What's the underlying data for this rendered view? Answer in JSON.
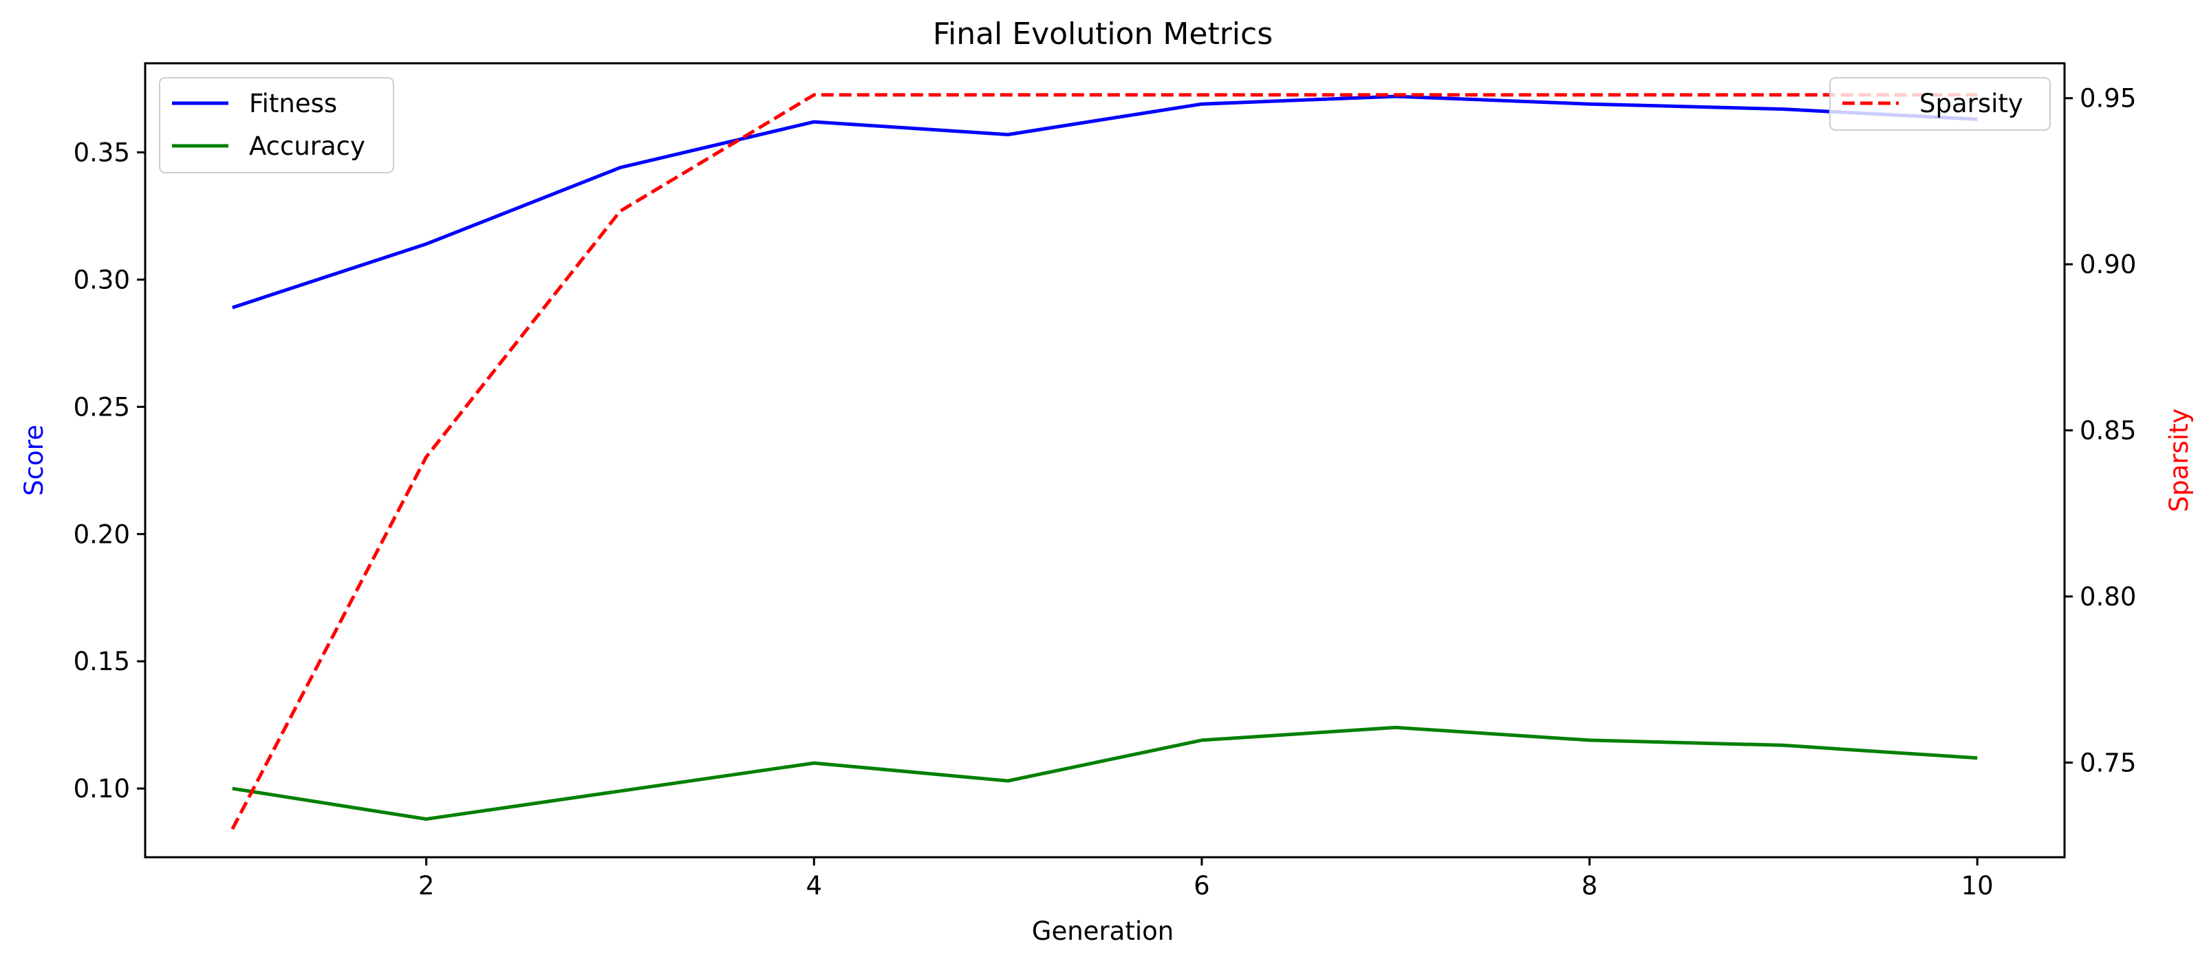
{
  "chart_data": {
    "type": "line",
    "title": "Final Evolution Metrics",
    "xlabel": "Generation",
    "ylabel": "Score",
    "y2label": "Sparsity",
    "x": [
      1,
      2,
      3,
      4,
      5,
      6,
      7,
      8,
      9,
      10
    ],
    "xlim": [
      0.55,
      10.45
    ],
    "ylim": [
      0.073,
      0.385
    ],
    "y2lim": [
      0.7215,
      0.9605
    ],
    "xticks": [
      2,
      4,
      6,
      8,
      10
    ],
    "yticks": [
      0.1,
      0.15,
      0.2,
      0.25,
      0.3,
      0.35
    ],
    "y2ticks": [
      0.75,
      0.8,
      0.85,
      0.9,
      0.95
    ],
    "colors": {
      "ylabel": "#0000ff",
      "y2label": "#ff0000"
    },
    "series": [
      {
        "name": "Fitness",
        "axis": "left",
        "color": "#0000ff",
        "style": "solid",
        "values": [
          0.289,
          0.314,
          0.344,
          0.362,
          0.357,
          0.369,
          0.372,
          0.369,
          0.367,
          0.363
        ]
      },
      {
        "name": "Accuracy",
        "axis": "left",
        "color": "#008000",
        "style": "solid",
        "values": [
          0.1,
          0.088,
          0.099,
          0.11,
          0.103,
          0.119,
          0.124,
          0.119,
          0.117,
          0.112
        ]
      },
      {
        "name": "Sparsity",
        "axis": "right",
        "color": "#ff0000",
        "style": "dashed",
        "values": [
          0.73,
          0.842,
          0.916,
          0.951,
          0.951,
          0.951,
          0.951,
          0.951,
          0.951,
          0.951
        ]
      }
    ],
    "legends": {
      "left": "upper-left",
      "right": "upper-right"
    },
    "grid": false
  }
}
